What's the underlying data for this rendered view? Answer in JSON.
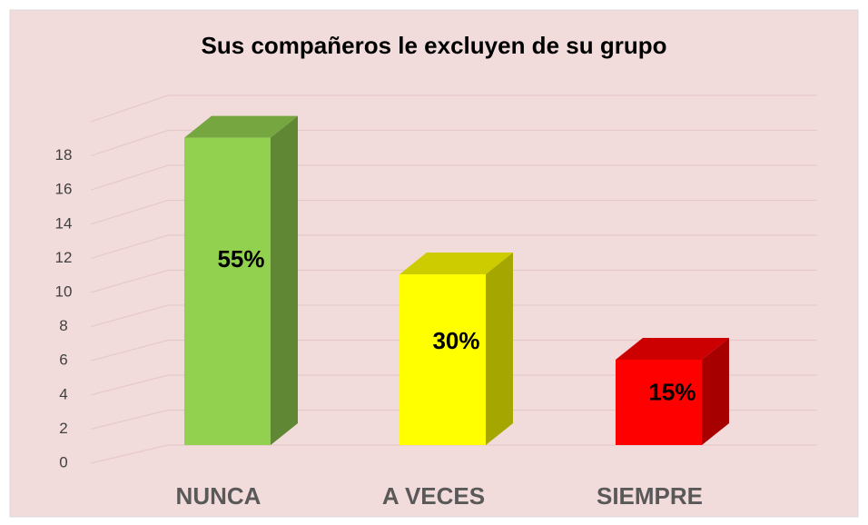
{
  "chart_data": {
    "type": "bar3d",
    "title": "Sus compañeros le excluyen de su grupo",
    "categories": [
      "NUNCA",
      "A VECES",
      "SIEMPRE"
    ],
    "values": [
      18,
      10,
      5
    ],
    "value_labels": [
      "55%",
      "30%",
      "15%"
    ],
    "colors": [
      "#92d050",
      "#ffff00",
      "#ff0000"
    ],
    "ylim": [
      0,
      20
    ],
    "yticks": [
      0,
      2,
      4,
      6,
      8,
      10,
      12,
      14,
      16,
      18
    ],
    "grid": true
  }
}
